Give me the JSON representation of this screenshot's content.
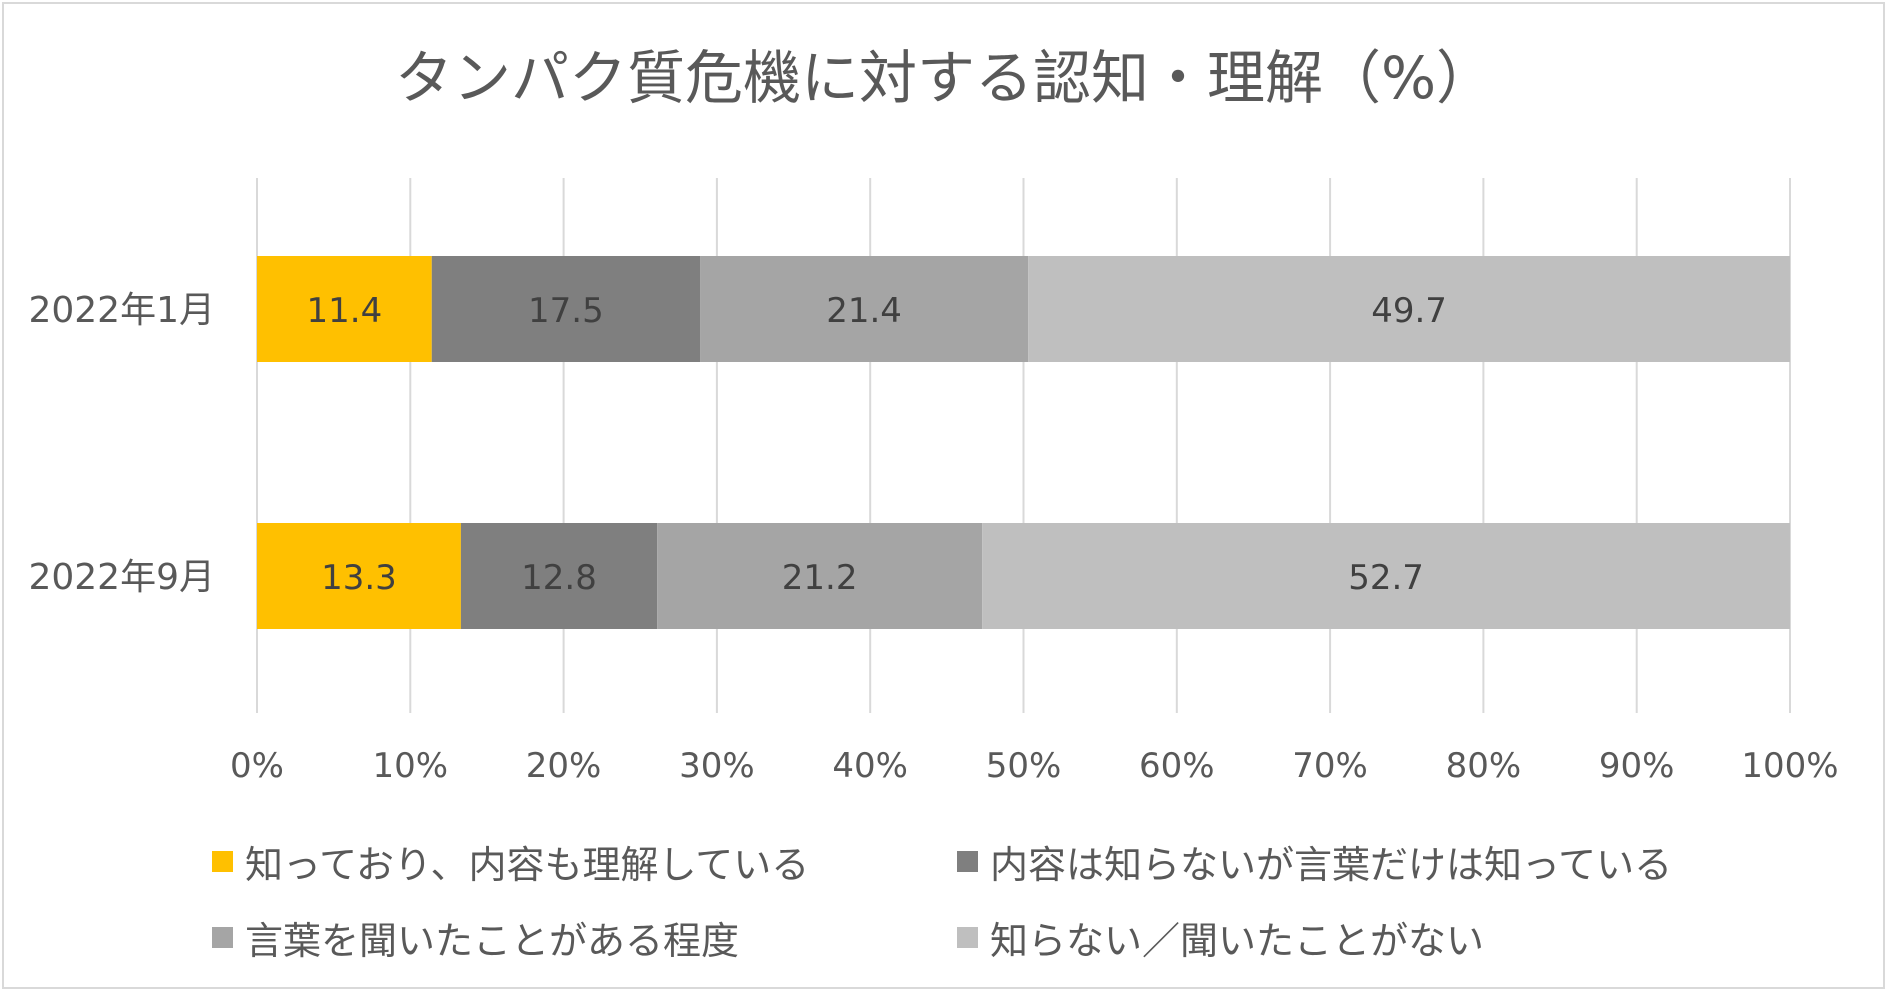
{
  "chart_data": {
    "type": "bar",
    "orientation": "horizontal",
    "stacked": true,
    "title": "タンパク質危機に対する認知・理解（%）",
    "categories": [
      "2022年1月",
      "2022年9月"
    ],
    "series": [
      {
        "name": "知っており、内容も理解している",
        "color": "#ffc000",
        "values": [
          11.4,
          13.3
        ],
        "labels": [
          "11.4",
          "13.3"
        ]
      },
      {
        "name": "内容は知らないが言葉だけは知っている",
        "color": "#7f7f7f",
        "values": [
          17.5,
          12.8
        ],
        "labels": [
          "17.5",
          "12.8"
        ]
      },
      {
        "name": "言葉を聞いたことがある程度",
        "color": "#a5a5a5",
        "values": [
          21.4,
          21.2
        ],
        "labels": [
          "21.4",
          "21.2"
        ]
      },
      {
        "name": "知らない／聞いたことがない",
        "color": "#bfbfbf",
        "values": [
          49.7,
          52.7
        ],
        "labels": [
          "49.7",
          "52.7"
        ]
      }
    ],
    "xlim": [
      0,
      100
    ],
    "x_ticks": [
      "0%",
      "10%",
      "20%",
      "30%",
      "40%",
      "50%",
      "60%",
      "70%",
      "80%",
      "90%",
      "100%"
    ],
    "grid": true,
    "legend_position": "bottom"
  }
}
